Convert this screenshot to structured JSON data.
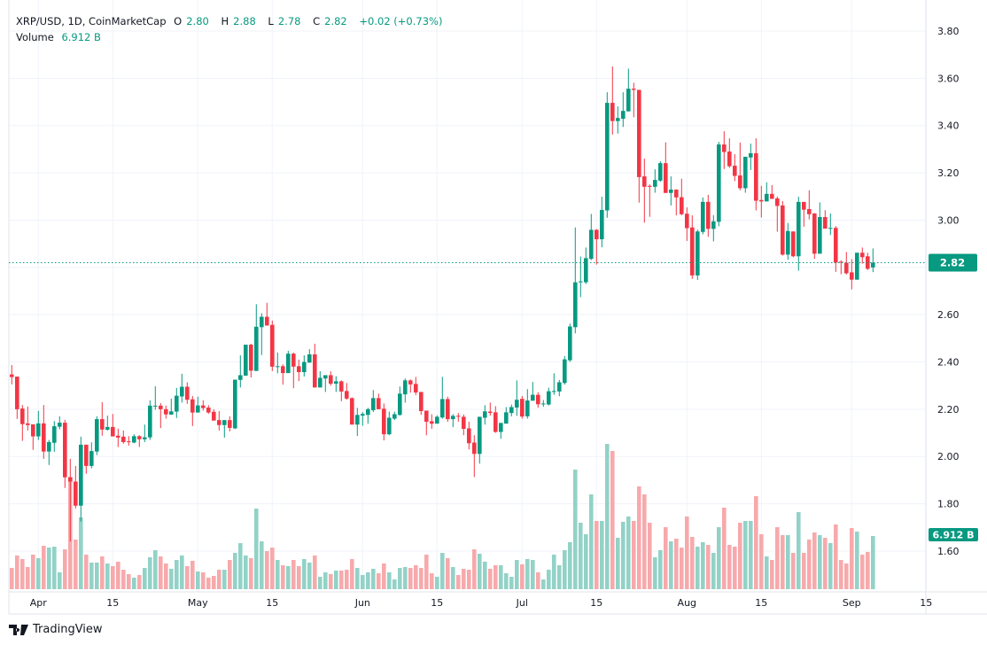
{
  "legend": {
    "symbol": "XRP/USD, 1D, CoinMarketCap",
    "o_label": "O",
    "o": "2.80",
    "h_label": "H",
    "h": "2.88",
    "l_label": "L",
    "l": "2.78",
    "c_label": "C",
    "c": "2.82",
    "change": "+0.02 (+0.73%)",
    "volume_label": "Volume",
    "volume": "6.912 B"
  },
  "brand": {
    "name": "TradingView"
  },
  "colors": {
    "up": "#089981",
    "down": "#F23645",
    "volume_up": "#92D2C7",
    "volume_down": "#F7A9AC",
    "grid": "#F0F3FA"
  },
  "chart_data": {
    "type": "candlestick",
    "title": "XRP/USD, 1D, CoinMarketCap",
    "ylim": [
      1.45,
      3.86
    ],
    "grid": true,
    "y_ticks": [
      "3.80",
      "3.60",
      "3.40",
      "3.20",
      "3.00",
      "2.80",
      "2.60",
      "2.40",
      "2.20",
      "2.00",
      "1.80",
      "1.60"
    ],
    "x_ticks": [
      {
        "label": "Apr",
        "date": "Apr 1"
      },
      {
        "label": "15",
        "date": "Apr 15"
      },
      {
        "label": "May",
        "date": "May 1"
      },
      {
        "label": "15",
        "date": "May 15"
      },
      {
        "label": "Jun",
        "date": "Jun 1"
      },
      {
        "label": "15",
        "date": "Jun 15"
      },
      {
        "label": "Jul",
        "date": "Jul 1"
      },
      {
        "label": "15",
        "date": "Jul 15"
      },
      {
        "label": "Aug",
        "date": "Aug 1"
      },
      {
        "label": "15",
        "date": "Aug 15"
      },
      {
        "label": "Sep",
        "date": "Sep 1"
      },
      {
        "label": "15",
        "date": "Sep 15"
      }
    ],
    "last_price_label": "2.82",
    "last_volume_label": "6.912 B",
    "columns": [
      "date",
      "open",
      "high",
      "low",
      "close",
      "volume_B"
    ],
    "candles": [
      [
        "Mar 27",
        2.347,
        2.387,
        2.305,
        2.336,
        2.76
      ],
      [
        "Mar 28",
        2.338,
        2.338,
        2.159,
        2.2,
        4.38
      ],
      [
        "Mar 29",
        2.203,
        2.218,
        2.066,
        2.137,
        3.92
      ],
      [
        "Mar 30",
        2.14,
        2.211,
        2.11,
        2.133,
        2.88
      ],
      [
        "Mar 31",
        2.136,
        2.136,
        2.028,
        2.085,
        4.49
      ],
      [
        "Apr 1",
        2.085,
        2.193,
        2.07,
        2.14,
        4.03
      ],
      [
        "Apr 2",
        2.14,
        2.218,
        1.99,
        2.021,
        5.64
      ],
      [
        "Apr 3",
        2.021,
        2.07,
        1.964,
        2.061,
        5.41
      ],
      [
        "Apr 4",
        2.058,
        2.15,
        2.02,
        2.128,
        5.53
      ],
      [
        "Apr 5",
        2.126,
        2.17,
        2.115,
        2.143,
        2.19
      ],
      [
        "Apr 6",
        2.143,
        2.155,
        1.867,
        1.912,
        5.18
      ],
      [
        "Apr 7",
        1.912,
        1.99,
        1.64,
        1.894,
        14.6
      ],
      [
        "Apr 8",
        1.894,
        1.96,
        1.78,
        1.792,
        6.45
      ],
      [
        "Apr 9",
        1.792,
        2.084,
        1.725,
        2.05,
        9.33
      ],
      [
        "Apr 10",
        2.05,
        2.05,
        1.927,
        1.96,
        4.49
      ],
      [
        "Apr 11",
        1.96,
        2.06,
        1.95,
        2.023,
        3.46
      ],
      [
        "Apr 12",
        2.021,
        2.17,
        2.006,
        2.158,
        3.46
      ],
      [
        "Apr 13",
        2.158,
        2.23,
        2.088,
        2.114,
        4.26
      ],
      [
        "Apr 14",
        2.113,
        2.173,
        2.11,
        2.125,
        3.34
      ],
      [
        "Apr 15",
        2.125,
        2.18,
        2.085,
        2.085,
        3.0
      ],
      [
        "Apr 16",
        2.088,
        2.118,
        2.04,
        2.08,
        3.57
      ],
      [
        "Apr 17",
        2.084,
        2.11,
        2.054,
        2.061,
        2.53
      ],
      [
        "Apr 18",
        2.064,
        2.086,
        2.046,
        2.061,
        1.96
      ],
      [
        "Apr 19",
        2.059,
        2.094,
        2.056,
        2.086,
        1.5
      ],
      [
        "Apr 20",
        2.086,
        2.09,
        2.04,
        2.073,
        1.84
      ],
      [
        "Apr 21",
        2.073,
        2.135,
        2.061,
        2.081,
        2.76
      ],
      [
        "Apr 22",
        2.081,
        2.238,
        2.07,
        2.215,
        4.15
      ],
      [
        "Apr 23",
        2.213,
        2.297,
        2.198,
        2.215,
        5.07
      ],
      [
        "Apr 24",
        2.215,
        2.226,
        2.12,
        2.2,
        4.26
      ],
      [
        "Apr 25",
        2.2,
        2.215,
        2.16,
        2.178,
        3.34
      ],
      [
        "Apr 26",
        2.177,
        2.245,
        2.177,
        2.191,
        2.65
      ],
      [
        "Apr 27",
        2.19,
        2.29,
        2.163,
        2.257,
        3.8
      ],
      [
        "Apr 28",
        2.254,
        2.35,
        2.228,
        2.295,
        4.38
      ],
      [
        "Apr 29",
        2.295,
        2.314,
        2.223,
        2.24,
        3.0
      ],
      [
        "Apr 30",
        2.242,
        2.256,
        2.129,
        2.186,
        3.69
      ],
      [
        "May 1",
        2.186,
        2.253,
        2.186,
        2.216,
        2.3
      ],
      [
        "May 2",
        2.216,
        2.238,
        2.194,
        2.205,
        2.19
      ],
      [
        "May 3",
        2.207,
        2.217,
        2.181,
        2.186,
        1.5
      ],
      [
        "May 4",
        2.189,
        2.2,
        2.152,
        2.152,
        1.73
      ],
      [
        "May 5",
        2.154,
        2.192,
        2.11,
        2.133,
        2.53
      ],
      [
        "May 6",
        2.133,
        2.154,
        2.08,
        2.154,
        2.53
      ],
      [
        "May 7",
        2.154,
        2.17,
        2.106,
        2.121,
        3.8
      ],
      [
        "May 8",
        2.119,
        2.325,
        2.116,
        2.325,
        4.72
      ],
      [
        "May 9",
        2.324,
        2.428,
        2.292,
        2.344,
        5.99
      ],
      [
        "May 10",
        2.342,
        2.473,
        2.342,
        2.473,
        4.38
      ],
      [
        "May 11",
        2.473,
        2.477,
        2.334,
        2.363,
        4.03
      ],
      [
        "May 12",
        2.362,
        2.644,
        2.362,
        2.549,
        10.48
      ],
      [
        "May 13",
        2.547,
        2.606,
        2.429,
        2.591,
        6.22
      ],
      [
        "May 14",
        2.591,
        2.65,
        2.554,
        2.554,
        4.95
      ],
      [
        "May 15",
        2.557,
        2.575,
        2.361,
        2.38,
        5.41
      ],
      [
        "May 16",
        2.379,
        2.44,
        2.352,
        2.382,
        3.8
      ],
      [
        "May 17",
        2.382,
        2.39,
        2.304,
        2.353,
        3.11
      ],
      [
        "May 18",
        2.353,
        2.447,
        2.353,
        2.435,
        3.0
      ],
      [
        "May 19",
        2.435,
        2.44,
        2.289,
        2.38,
        3.8
      ],
      [
        "May 20",
        2.382,
        2.41,
        2.319,
        2.357,
        3.0
      ],
      [
        "May 21",
        2.357,
        2.428,
        2.338,
        2.4,
        3.92
      ],
      [
        "May 22",
        2.397,
        2.454,
        2.397,
        2.432,
        3.46
      ],
      [
        "May 23",
        2.432,
        2.477,
        2.292,
        2.292,
        4.38
      ],
      [
        "May 24",
        2.292,
        2.361,
        2.292,
        2.333,
        1.61
      ],
      [
        "May 25",
        2.33,
        2.344,
        2.273,
        2.344,
        2.19
      ],
      [
        "May 26",
        2.344,
        2.36,
        2.3,
        2.308,
        1.96
      ],
      [
        "May 27",
        2.308,
        2.34,
        2.273,
        2.318,
        2.42
      ],
      [
        "May 28",
        2.318,
        2.322,
        2.234,
        2.275,
        2.42
      ],
      [
        "May 29",
        2.277,
        2.311,
        2.24,
        2.245,
        2.53
      ],
      [
        "May 30",
        2.247,
        2.25,
        2.135,
        2.135,
        3.92
      ],
      [
        "May 31",
        2.135,
        2.206,
        2.087,
        2.176,
        2.76
      ],
      [
        "Jun 1",
        2.173,
        2.188,
        2.13,
        2.18,
        1.84
      ],
      [
        "Jun 2",
        2.176,
        2.206,
        2.139,
        2.2,
        2.19
      ],
      [
        "Jun 3",
        2.196,
        2.281,
        2.188,
        2.247,
        2.65
      ],
      [
        "Jun 4",
        2.247,
        2.266,
        2.2,
        2.2,
        2.07
      ],
      [
        "Jun 5",
        2.202,
        2.224,
        2.068,
        2.094,
        3.34
      ],
      [
        "Jun 6",
        2.094,
        2.19,
        2.09,
        2.164,
        2.19
      ],
      [
        "Jun 7",
        2.16,
        2.19,
        2.154,
        2.179,
        1.27
      ],
      [
        "Jun 8",
        2.176,
        2.296,
        2.172,
        2.266,
        2.76
      ],
      [
        "Jun 9",
        2.263,
        2.33,
        2.228,
        2.322,
        2.88
      ],
      [
        "Jun 10",
        2.322,
        2.326,
        2.27,
        2.305,
        2.76
      ],
      [
        "Jun 11",
        2.307,
        2.337,
        2.26,
        2.271,
        3.11
      ],
      [
        "Jun 12",
        2.273,
        2.273,
        2.176,
        2.192,
        2.76
      ],
      [
        "Jun 13",
        2.194,
        2.194,
        2.09,
        2.147,
        4.49
      ],
      [
        "Jun 14",
        2.149,
        2.179,
        2.117,
        2.139,
        2.07
      ],
      [
        "Jun 15",
        2.139,
        2.174,
        2.139,
        2.168,
        1.61
      ],
      [
        "Jun 16",
        2.165,
        2.337,
        2.16,
        2.243,
        4.72
      ],
      [
        "Jun 17",
        2.243,
        2.253,
        2.147,
        2.158,
        4.03
      ],
      [
        "Jun 18",
        2.158,
        2.179,
        2.124,
        2.172,
        2.88
      ],
      [
        "Jun 19",
        2.172,
        2.184,
        2.147,
        2.169,
        1.84
      ],
      [
        "Jun 20",
        2.168,
        2.178,
        2.09,
        2.117,
        2.65
      ],
      [
        "Jun 21",
        2.119,
        2.147,
        2.03,
        2.056,
        2.53
      ],
      [
        "Jun 22",
        2.059,
        2.09,
        1.913,
        2.011,
        5.18
      ],
      [
        "Jun 23",
        2.011,
        2.168,
        1.97,
        2.168,
        4.61
      ],
      [
        "Jun 24",
        2.164,
        2.217,
        2.135,
        2.191,
        3.57
      ],
      [
        "Jun 25",
        2.19,
        2.228,
        2.173,
        2.184,
        2.65
      ],
      [
        "Jun 26",
        2.187,
        2.213,
        2.1,
        2.104,
        3.11
      ],
      [
        "Jun 27",
        2.104,
        2.142,
        2.075,
        2.142,
        3.11
      ],
      [
        "Jun 28",
        2.139,
        2.209,
        2.139,
        2.187,
        2.07
      ],
      [
        "Jun 29",
        2.184,
        2.22,
        2.17,
        2.209,
        1.61
      ],
      [
        "Jun 30",
        2.207,
        2.322,
        2.172,
        2.24,
        3.8
      ],
      [
        "Jul 1",
        2.244,
        2.256,
        2.16,
        2.169,
        3.23
      ],
      [
        "Jul 2",
        2.17,
        2.285,
        2.16,
        2.237,
        3.92
      ],
      [
        "Jul 3",
        2.236,
        2.315,
        2.236,
        2.261,
        3.8
      ],
      [
        "Jul 4",
        2.261,
        2.272,
        2.206,
        2.221,
        2.19
      ],
      [
        "Jul 5",
        2.221,
        2.239,
        2.21,
        2.224,
        1.27
      ],
      [
        "Jul 6",
        2.22,
        2.291,
        2.216,
        2.276,
        2.53
      ],
      [
        "Jul 7",
        2.275,
        2.352,
        2.261,
        2.277,
        4.49
      ],
      [
        "Jul 8",
        2.275,
        2.324,
        2.255,
        2.314,
        3.11
      ],
      [
        "Jul 9",
        2.311,
        2.425,
        2.304,
        2.411,
        5.07
      ],
      [
        "Jul 10",
        2.407,
        2.562,
        2.4,
        2.55,
        6.11
      ],
      [
        "Jul 11",
        2.547,
        2.969,
        2.521,
        2.737,
        15.55
      ],
      [
        "Jul 12",
        2.737,
        2.846,
        2.674,
        2.741,
        8.64
      ],
      [
        "Jul 13",
        2.737,
        2.884,
        2.73,
        2.839,
        7.14
      ],
      [
        "Jul 14",
        2.836,
        3.026,
        2.831,
        2.959,
        12.33
      ],
      [
        "Jul 15",
        2.959,
        2.962,
        2.812,
        2.919,
        8.87
      ],
      [
        "Jul 16",
        2.919,
        3.099,
        2.885,
        3.043,
        8.87
      ],
      [
        "Jul 17",
        3.041,
        3.541,
        3.01,
        3.496,
        18.89
      ],
      [
        "Jul 18",
        3.496,
        3.65,
        3.362,
        3.419,
        17.97
      ],
      [
        "Jul 19",
        3.419,
        3.481,
        3.366,
        3.432,
        6.68
      ],
      [
        "Jul 20",
        3.429,
        3.541,
        3.394,
        3.462,
        8.76
      ],
      [
        "Jul 21",
        3.46,
        3.641,
        3.46,
        3.556,
        9.45
      ],
      [
        "Jul 22",
        3.556,
        3.581,
        3.435,
        3.551,
        8.87
      ],
      [
        "Jul 23",
        3.551,
        3.551,
        3.074,
        3.182,
        13.36
      ],
      [
        "Jul 24",
        3.185,
        3.26,
        2.989,
        3.141,
        12.33
      ],
      [
        "Jul 25",
        3.145,
        3.151,
        3.014,
        3.141,
        8.64
      ],
      [
        "Jul 26",
        3.141,
        3.215,
        3.116,
        3.17,
        4.15
      ],
      [
        "Jul 27",
        3.167,
        3.249,
        3.162,
        3.241,
        5.07
      ],
      [
        "Jul 28",
        3.241,
        3.329,
        3.115,
        3.115,
        8.06
      ],
      [
        "Jul 29",
        3.115,
        3.185,
        3.062,
        3.129,
        6.22
      ],
      [
        "Jul 30",
        3.129,
        3.13,
        3.02,
        3.096,
        6.57
      ],
      [
        "Jul 31",
        3.097,
        3.175,
        3.02,
        3.025,
        5.41
      ],
      [
        "Aug 1",
        3.027,
        3.054,
        2.912,
        2.966,
        9.45
      ],
      [
        "Aug 2",
        2.969,
        3.02,
        2.751,
        2.766,
        6.8
      ],
      [
        "Aug 3",
        2.766,
        2.96,
        2.747,
        2.952,
        5.53
      ],
      [
        "Aug 4",
        2.95,
        3.096,
        2.94,
        3.077,
        6.11
      ],
      [
        "Aug 5",
        3.077,
        3.107,
        2.929,
        2.963,
        5.76
      ],
      [
        "Aug 6",
        2.963,
        3.021,
        2.91,
        2.995,
        4.72
      ],
      [
        "Aug 7",
        2.993,
        3.331,
        2.974,
        3.32,
        8.06
      ],
      [
        "Aug 8",
        3.32,
        3.376,
        3.216,
        3.288,
        10.6
      ],
      [
        "Aug 9",
        3.29,
        3.346,
        3.221,
        3.228,
        5.76
      ],
      [
        "Aug 10",
        3.23,
        3.279,
        3.165,
        3.187,
        5.53
      ],
      [
        "Aug 11",
        3.189,
        3.328,
        3.126,
        3.135,
        8.64
      ],
      [
        "Aug 12",
        3.135,
        3.268,
        3.116,
        3.268,
        8.87
      ],
      [
        "Aug 13",
        3.265,
        3.324,
        3.212,
        3.283,
        8.87
      ],
      [
        "Aug 14",
        3.283,
        3.346,
        3.041,
        3.082,
        12.1
      ],
      [
        "Aug 15",
        3.085,
        3.145,
        3.011,
        3.079,
        7.14
      ],
      [
        "Aug 16",
        3.079,
        3.16,
        3.079,
        3.111,
        4.26
      ],
      [
        "Aug 17",
        3.111,
        3.148,
        3.09,
        3.09,
        3.8
      ],
      [
        "Aug 18",
        3.092,
        3.1,
        2.951,
        3.06,
        8.06
      ],
      [
        "Aug 19",
        3.062,
        3.081,
        2.85,
        2.854,
        7.03
      ],
      [
        "Aug 20",
        2.854,
        2.988,
        2.832,
        2.954,
        7.03
      ],
      [
        "Aug 21",
        2.952,
        2.952,
        2.843,
        2.847,
        4.72
      ],
      [
        "Aug 22",
        2.847,
        3.099,
        2.786,
        3.077,
        10.02
      ],
      [
        "Aug 23",
        3.077,
        3.077,
        2.972,
        3.044,
        4.72
      ],
      [
        "Aug 24",
        3.047,
        3.126,
        3.003,
        3.025,
        6.45
      ],
      [
        "Aug 25",
        3.028,
        3.03,
        2.836,
        2.858,
        7.37
      ],
      [
        "Aug 26",
        2.858,
        3.075,
        2.858,
        3.013,
        7.03
      ],
      [
        "Aug 27",
        3.013,
        3.042,
        2.964,
        2.964,
        6.68
      ],
      [
        "Aug 28",
        2.964,
        3.028,
        2.937,
        2.967,
        5.99
      ],
      [
        "Aug 29",
        2.967,
        2.975,
        2.781,
        2.82,
        8.41
      ],
      [
        "Aug 30",
        2.824,
        2.83,
        2.771,
        2.82,
        3.8
      ],
      [
        "Aug 31",
        2.82,
        2.865,
        2.77,
        2.775,
        3.34
      ],
      [
        "Sep 1",
        2.779,
        2.835,
        2.707,
        2.748,
        7.95
      ],
      [
        "Sep 2",
        2.748,
        2.862,
        2.748,
        2.862,
        7.49
      ],
      [
        "Sep 3",
        2.862,
        2.884,
        2.816,
        2.843,
        4.49
      ],
      [
        "Sep 4",
        2.847,
        2.862,
        2.789,
        2.794,
        4.84
      ],
      [
        "Sep 5",
        2.8,
        2.88,
        2.78,
        2.82,
        6.912
      ]
    ]
  }
}
